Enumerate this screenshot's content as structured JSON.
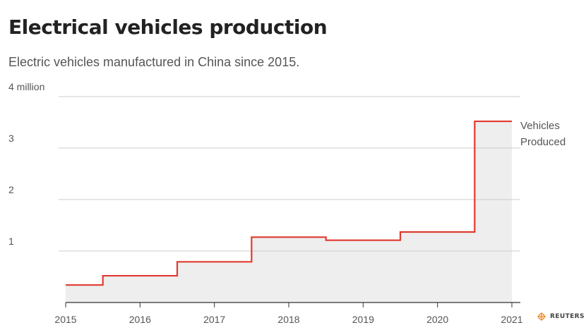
{
  "header": {
    "title": "Electrical vehicles production",
    "subtitle": "Electric vehicles manufactured in China since 2015."
  },
  "brand": {
    "name": "REUTERS",
    "icon": "reuters-logo-icon"
  },
  "colors": {
    "line": "#e03a2f",
    "fill": "#eeeeee",
    "grid": "#cccccc",
    "axis": "#333333",
    "logo": "#f08a24"
  },
  "chart_data": {
    "type": "area",
    "title": "Electrical vehicles production",
    "subtitle": "Electric vehicles manufactured in China since 2015.",
    "step": true,
    "x": [
      2015,
      2016,
      2017,
      2018,
      2019,
      2020,
      2021
    ],
    "series": [
      {
        "name": "Vehicles Produced",
        "values": [
          0.34,
          0.52,
          0.79,
          1.27,
          1.21,
          1.37,
          3.52
        ]
      }
    ],
    "xlim": [
      2015,
      2021
    ],
    "ylim": [
      0,
      4
    ],
    "yticks": [
      1,
      2,
      3,
      4
    ],
    "ytick_labels": [
      "1",
      "2",
      "3",
      "4 million"
    ],
    "xticks": [
      2015,
      2016,
      2017,
      2018,
      2019,
      2020,
      2021
    ],
    "grid": true,
    "series_label_lines": [
      "Vehicles",
      "Produced"
    ]
  }
}
